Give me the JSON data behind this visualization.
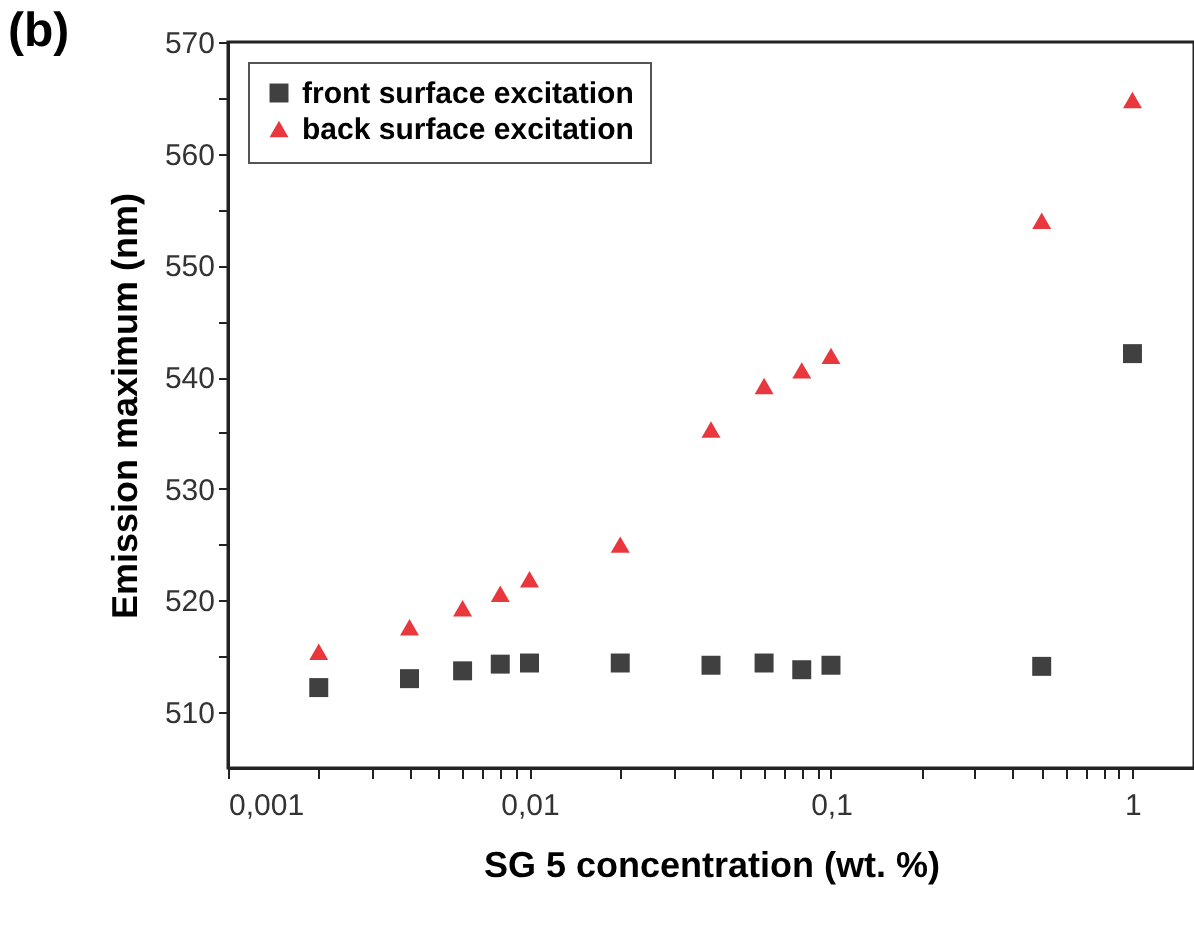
{
  "chart_data": {
    "type": "scatter",
    "title": "(b)",
    "xlabel": "SG 5 concentration (wt. %)",
    "ylabel": "Emission maximum (nm)",
    "log": "x",
    "xlim": [
      0.001,
      1.6
    ],
    "ylim": [
      505,
      570
    ],
    "xticks": [
      {
        "value": 0.001,
        "label": "0,001"
      },
      {
        "value": 0.002,
        "label": null
      },
      {
        "value": 0.003,
        "label": null
      },
      {
        "value": 0.004,
        "label": null
      },
      {
        "value": 0.005,
        "label": null
      },
      {
        "value": 0.006,
        "label": null
      },
      {
        "value": 0.007,
        "label": null
      },
      {
        "value": 0.008,
        "label": null
      },
      {
        "value": 0.009,
        "label": null
      },
      {
        "value": 0.01,
        "label": "0,01"
      },
      {
        "value": 0.02,
        "label": null
      },
      {
        "value": 0.03,
        "label": null
      },
      {
        "value": 0.04,
        "label": null
      },
      {
        "value": 0.05,
        "label": null
      },
      {
        "value": 0.06,
        "label": null
      },
      {
        "value": 0.07,
        "label": null
      },
      {
        "value": 0.08,
        "label": null
      },
      {
        "value": 0.09,
        "label": null
      },
      {
        "value": 0.1,
        "label": "0,1"
      },
      {
        "value": 0.2,
        "label": null
      },
      {
        "value": 0.3,
        "label": null
      },
      {
        "value": 0.4,
        "label": null
      },
      {
        "value": 0.5,
        "label": null
      },
      {
        "value": 0.6,
        "label": null
      },
      {
        "value": 0.7,
        "label": null
      },
      {
        "value": 0.8,
        "label": null
      },
      {
        "value": 0.9,
        "label": null
      },
      {
        "value": 1,
        "label": "1"
      }
    ],
    "yticks": [
      510,
      {
        "value": 515,
        "label": null
      },
      520,
      {
        "value": 525,
        "label": null
      },
      530,
      {
        "value": 535,
        "label": null
      },
      540,
      {
        "value": 545,
        "label": null
      },
      550,
      {
        "value": 555,
        "label": null
      },
      560,
      {
        "value": 565,
        "label": null
      },
      570
    ],
    "x": [
      0.002,
      0.004,
      0.006,
      0.008,
      0.01,
      0.02,
      0.04,
      0.06,
      0.08,
      0.1,
      0.5,
      1
    ],
    "grid": false,
    "legend": "top left",
    "series": [
      {
        "name": "front surface excitation",
        "color": "#404040",
        "marker": "square",
        "values": [
          512.2,
          513.0,
          513.7,
          514.3,
          514.4,
          514.4,
          514.2,
          514.4,
          513.8,
          514.2,
          514.1,
          542.1
        ]
      },
      {
        "name": "back surface excitation",
        "color": "#e8383d",
        "marker": "triangle",
        "values": [
          515.4,
          517.6,
          519.3,
          520.6,
          521.9,
          525.0,
          535.3,
          539.2,
          540.6,
          541.9,
          554.0,
          564.8
        ]
      }
    ]
  }
}
